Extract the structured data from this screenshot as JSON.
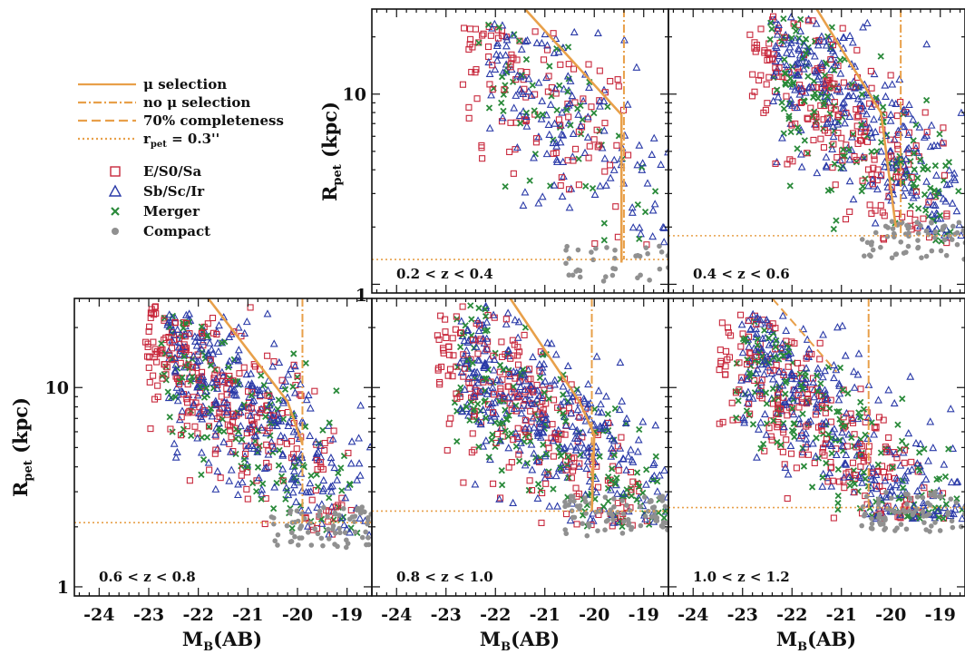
{
  "chart_data": {
    "type": "scatter",
    "xlabel_main": "M",
    "xlabel_sub": "B",
    "xlabel_suffix": "(AB)",
    "ylabel_main": "R",
    "ylabel_sub": "pet",
    "ylabel_suffix": " (kpc)",
    "x_ticks": [
      "-24",
      "-23",
      "-22",
      "-21",
      "-20",
      "-19"
    ],
    "xlim": [
      -24.5,
      -18.5
    ],
    "y_scale": "log",
    "ylim": [
      0.9,
      28
    ],
    "y_tick_labels": [
      {
        "value": 1,
        "label": "1"
      },
      {
        "value": 10,
        "label": "10"
      }
    ],
    "legend": {
      "lines": [
        {
          "label_pre": "μ selection",
          "style": "solid",
          "color": "#e8a04a"
        },
        {
          "label_pre": "no μ selection",
          "style": "dashdot",
          "color": "#e8a04a"
        },
        {
          "label_pre": "70% completeness",
          "style": "dashed",
          "color": "#e8a04a"
        },
        {
          "label_pre": "r",
          "label_sub": "pet",
          "label_post": " = 0.3''",
          "style": "dotted",
          "color": "#e8a04a"
        }
      ],
      "markers": [
        {
          "label": "E/S0/Sa",
          "marker": "square",
          "color": "#c8283c"
        },
        {
          "label": "Sb/Sc/Ir",
          "marker": "triangle",
          "color": "#2a3aa8"
        },
        {
          "label": "Merger",
          "marker": "x",
          "color": "#2a8a3a"
        },
        {
          "label": "Compact",
          "marker": "dot",
          "color": "#909090"
        }
      ]
    },
    "colors": {
      "E/S0/Sa": "#c8283c",
      "Sb/Sc/Ir": "#2a3aa8",
      "Merger": "#2a8a3a",
      "Compact": "#909090",
      "selection_line": "#e8a04a"
    },
    "panels": [
      {
        "label": "0.2 < z < 0.4",
        "mu_sel": [
          [
            -21.4,
            28
          ],
          [
            -19.45,
            7.8
          ],
          [
            -19.45,
            1.3
          ]
        ],
        "no_mu_x": -19.4,
        "completeness": null,
        "r_limit": 1.35,
        "cloud": {
          "x_lo": -22.4,
          "x_hi": -18.6,
          "y_hi_at_bright": 18,
          "density": 0.55,
          "spread": 0.28,
          "y_min": 1.6,
          "slope": 0.25,
          "x_peak": -20.0
        }
      },
      {
        "label": "0.4 < z < 0.6",
        "mu_sel": [
          [
            -21.5,
            28
          ],
          [
            -20.2,
            8
          ],
          [
            -19.9,
            2.0
          ]
        ],
        "no_mu_x": -19.8,
        "completeness": null,
        "r_limit": 1.8,
        "cloud": {
          "x_lo": -22.6,
          "x_hi": -18.5,
          "y_hi_at_bright": 20,
          "density": 1.0,
          "spread": 0.22,
          "y_min": 1.6,
          "slope": 0.22,
          "x_peak": -20.2
        }
      },
      {
        "label": "0.6 < z < 0.8",
        "mu_sel": [
          [
            -21.8,
            28
          ],
          [
            -20.2,
            8.5
          ],
          [
            -19.9,
            5.2
          ]
        ],
        "no_mu_x": -19.9,
        "completeness": null,
        "r_limit": 2.1,
        "cloud": {
          "x_lo": -22.8,
          "x_hi": -18.6,
          "y_hi_at_bright": 20,
          "density": 1.1,
          "spread": 0.2,
          "y_min": 1.8,
          "slope": 0.2,
          "x_peak": -20.5
        }
      },
      {
        "label": "0.8 < z < 1.0",
        "mu_sel": [
          [
            -21.7,
            28
          ],
          [
            -20.3,
            8.5
          ],
          [
            -20.0,
            5.8
          ],
          [
            -20.05,
            2.4
          ]
        ],
        "no_mu_x": -20.05,
        "completeness": null,
        "r_limit": 2.4,
        "cloud": {
          "x_lo": -22.9,
          "x_hi": -18.6,
          "y_hi_at_bright": 20,
          "density": 1.1,
          "spread": 0.2,
          "y_min": 2.0,
          "slope": 0.2,
          "x_peak": -20.7
        }
      },
      {
        "label": "1.0 < z < 1.2",
        "mu_sel": null,
        "no_mu_x": -20.45,
        "completeness": [
          [
            -22.4,
            28
          ],
          [
            -21.1,
            12
          ]
        ],
        "r_limit": 2.5,
        "cloud": {
          "x_lo": -23.2,
          "x_hi": -18.6,
          "y_hi_at_bright": 18,
          "density": 1.1,
          "spread": 0.2,
          "y_min": 2.2,
          "slope": 0.2,
          "x_peak": -21.0
        }
      }
    ]
  }
}
